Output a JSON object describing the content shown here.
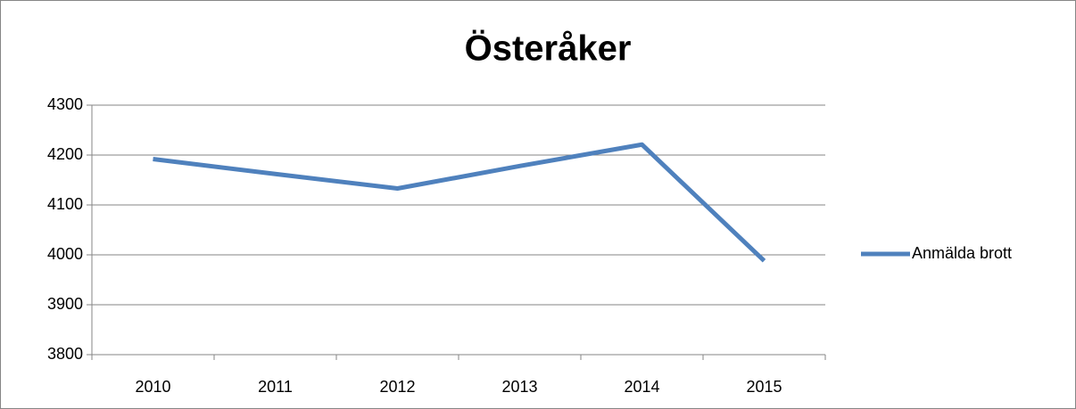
{
  "chart_data": {
    "type": "line",
    "title": "Österåker",
    "categories": [
      "2010",
      "2011",
      "2012",
      "2013",
      "2014",
      "2015"
    ],
    "series": [
      {
        "name": "Anmälda brott",
        "color": "#4f81bd",
        "values": [
          4192,
          4162,
          4133,
          4178,
          4221,
          3988
        ]
      }
    ],
    "ylim": [
      3800,
      4300
    ],
    "yticks": [
      3800,
      3900,
      4000,
      4100,
      4200,
      4300
    ],
    "grid": true,
    "legend": "right"
  }
}
